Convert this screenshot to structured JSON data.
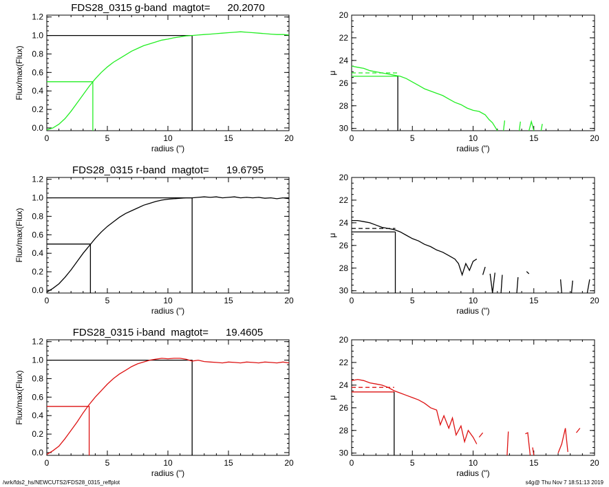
{
  "footer": {
    "path": "/wrk/fds2_hs/NEWCUTS2/FDS28_0315_reffplot",
    "stamp": "s4g@  Thu Nov  7 18:51:13 2019"
  },
  "colors": {
    "g": "#22ee22",
    "r": "#000000",
    "i": "#dd1111",
    "axes": "#000000"
  },
  "chart_data": [
    {
      "type": "line",
      "panel": "growth-curve",
      "band": "g",
      "title": "FDS28_0315 g-band  magtot=      20.2070",
      "xlabel": "radius (\")",
      "ylabel": "Flux/max(Flux)",
      "xlim": [
        0,
        20
      ],
      "ylim": [
        -0.03,
        1.22
      ],
      "xticks": [
        "0",
        "5",
        "10",
        "15",
        "20"
      ],
      "yticks": [
        "0.0",
        "0.2",
        "0.4",
        "0.6",
        "0.8",
        "1.0",
        "1.2"
      ],
      "series": [
        {
          "x": [
            0,
            0.5,
            1,
            1.5,
            2,
            2.5,
            3,
            3.5,
            4,
            4.5,
            5,
            5.5,
            6,
            6.5,
            7,
            7.5,
            8,
            8.5,
            9,
            9.5,
            10,
            10.5,
            11,
            11.5,
            12,
            12.5,
            13,
            13.5,
            14,
            14.5,
            15,
            15.5,
            16,
            16.5,
            17,
            17.5,
            18,
            18.5,
            19,
            19.5,
            20
          ],
          "y": [
            -0.02,
            0,
            0.04,
            0.1,
            0.18,
            0.27,
            0.36,
            0.45,
            0.53,
            0.6,
            0.66,
            0.71,
            0.75,
            0.79,
            0.83,
            0.86,
            0.89,
            0.91,
            0.93,
            0.95,
            0.96,
            0.975,
            0.985,
            0.995,
            1.0,
            1.005,
            1.01,
            1.015,
            1.02,
            1.025,
            1.03,
            1.035,
            1.04,
            1.035,
            1.03,
            1.025,
            1.02,
            1.015,
            1.01,
            1.01,
            1.005
          ]
        }
      ],
      "ref_lines": {
        "half_radius": 3.8,
        "half_flux": 0.5,
        "total_radius": 12.0,
        "total_flux": 1.0
      }
    },
    {
      "type": "line",
      "panel": "surface-brightness",
      "band": "g",
      "xlabel": "radius (\")",
      "ylabel": "μ",
      "xlim": [
        0,
        20
      ],
      "ylim": [
        30.2,
        20
      ],
      "y_inverted": true,
      "xticks": [
        "0",
        "5",
        "10",
        "15",
        "20"
      ],
      "yticks": [
        "20",
        "22",
        "24",
        "26",
        "28",
        "30"
      ],
      "series": [
        {
          "x": [
            0,
            0.5,
            1,
            1.5,
            2,
            2.5,
            3,
            3.5,
            4,
            4.5,
            5,
            5.5,
            6,
            6.5,
            7,
            7.5,
            8,
            8.5,
            9,
            9.5,
            10,
            10.5,
            11,
            11.3,
            11.6,
            12
          ],
          "y": [
            24.5,
            24.6,
            24.7,
            24.9,
            25.0,
            25.1,
            25.2,
            25.3,
            25.4,
            25.6,
            25.9,
            26.2,
            26.5,
            26.7,
            26.9,
            27.1,
            27.4,
            27.7,
            27.9,
            28.2,
            28.4,
            28.5,
            28.8,
            29.2,
            29.5,
            30.2
          ]
        }
      ],
      "fragments": [
        {
          "x": [
            12.5,
            12.6
          ],
          "y": [
            30.2,
            29.3
          ]
        },
        {
          "x": [
            13.8,
            13.9
          ],
          "y": [
            30.2,
            29.4
          ]
        },
        {
          "x": [
            14.6,
            14.8,
            15.0
          ],
          "y": [
            30.2,
            29.4,
            30.2
          ]
        },
        {
          "x": [
            15.6,
            15.7
          ],
          "y": [
            30.2,
            29.6
          ]
        }
      ],
      "ref_lines": {
        "half_radius": 3.8,
        "mu_eff": 25.4,
        "mu_mean": 25.1
      }
    },
    {
      "type": "line",
      "panel": "growth-curve",
      "band": "r",
      "title": "FDS28_0315 r-band  magtot=      19.6795",
      "xlabel": "radius (\")",
      "ylabel": "Flux/max(Flux)",
      "xlim": [
        0,
        20
      ],
      "ylim": [
        -0.03,
        1.22
      ],
      "xticks": [
        "0",
        "5",
        "10",
        "15",
        "20"
      ],
      "yticks": [
        "0.0",
        "0.2",
        "0.4",
        "0.6",
        "0.8",
        "1.0",
        "1.2"
      ],
      "series": [
        {
          "x": [
            0,
            0.5,
            1,
            1.5,
            2,
            2.5,
            3,
            3.5,
            4,
            4.5,
            5,
            5.5,
            6,
            6.5,
            7,
            7.5,
            8,
            8.5,
            9,
            9.5,
            10,
            10.5,
            11,
            11.5,
            12,
            12.5,
            13,
            13.5,
            14,
            14.5,
            15,
            15.5,
            16,
            16.5,
            17,
            17.5,
            18,
            18.5,
            19,
            19.5,
            20
          ],
          "y": [
            -0.02,
            0.02,
            0.07,
            0.14,
            0.22,
            0.31,
            0.4,
            0.48,
            0.56,
            0.63,
            0.69,
            0.74,
            0.79,
            0.83,
            0.86,
            0.89,
            0.92,
            0.94,
            0.96,
            0.975,
            0.985,
            0.99,
            0.995,
            1.0,
            1.0,
            1.005,
            1.01,
            1.005,
            1.01,
            1.0,
            1.005,
            1.01,
            1.0,
            1.005,
            1.0,
            1.005,
            0.995,
            1.0,
            0.99,
            1.0,
            0.99
          ]
        }
      ],
      "ref_lines": {
        "half_radius": 3.6,
        "half_flux": 0.5,
        "total_radius": 12.0,
        "total_flux": 1.0
      }
    },
    {
      "type": "line",
      "panel": "surface-brightness",
      "band": "r",
      "xlabel": "radius (\")",
      "ylabel": "μ",
      "xlim": [
        0,
        20
      ],
      "ylim": [
        30.2,
        20
      ],
      "y_inverted": true,
      "xticks": [
        "0",
        "5",
        "10",
        "15",
        "20"
      ],
      "yticks": [
        "20",
        "22",
        "24",
        "26",
        "28",
        "30"
      ],
      "series": [
        {
          "x": [
            0,
            0.5,
            1,
            1.5,
            2,
            2.5,
            3,
            3.5,
            4,
            4.5,
            5,
            5.5,
            6,
            6.5,
            7,
            7.5,
            8,
            8.5,
            8.8,
            9.1,
            9.4,
            9.7,
            10,
            10.3
          ],
          "y": [
            23.8,
            23.8,
            23.9,
            24.0,
            24.2,
            24.4,
            24.5,
            24.6,
            24.8,
            25.1,
            25.4,
            25.6,
            25.9,
            26.1,
            26.4,
            26.6,
            26.9,
            27.2,
            27.6,
            28.6,
            27.6,
            28.2,
            27.4,
            27.2
          ]
        }
      ],
      "fragments": [
        {
          "x": [
            10.8,
            11.0
          ],
          "y": [
            28.6,
            27.9
          ]
        },
        {
          "x": [
            11.4,
            11.6,
            11.8
          ],
          "y": [
            28.5,
            30.2,
            28.4
          ]
        },
        {
          "x": [
            12.3,
            12.4
          ],
          "y": [
            30.2,
            28.6
          ]
        },
        {
          "x": [
            13.6,
            13.7
          ],
          "y": [
            30.2,
            28.8
          ]
        },
        {
          "x": [
            14.4,
            14.6
          ],
          "y": [
            28.3,
            28.5
          ]
        },
        {
          "x": [
            17.2,
            17.3
          ],
          "y": [
            29.0,
            30.2
          ]
        },
        {
          "x": [
            18.1,
            18.2
          ],
          "y": [
            30.2,
            29.1
          ]
        },
        {
          "x": [
            19.4,
            19.6
          ],
          "y": [
            30.2,
            29.0
          ]
        }
      ],
      "ref_lines": {
        "half_radius": 3.6,
        "mu_eff": 24.8,
        "mu_mean": 24.5
      }
    },
    {
      "type": "line",
      "panel": "growth-curve",
      "band": "i",
      "title": "FDS28_0315 i-band  magtot=      19.4605",
      "xlabel": "radius (\")",
      "ylabel": "Flux/max(Flux)",
      "xlim": [
        0,
        20
      ],
      "ylim": [
        -0.03,
        1.22
      ],
      "xticks": [
        "0",
        "5",
        "10",
        "15",
        "20"
      ],
      "yticks": [
        "0.0",
        "0.2",
        "0.4",
        "0.6",
        "0.8",
        "1.0",
        "1.2"
      ],
      "series": [
        {
          "x": [
            0,
            0.5,
            1,
            1.5,
            2,
            2.5,
            3,
            3.5,
            4,
            4.5,
            5,
            5.5,
            6,
            6.5,
            7,
            7.5,
            8,
            8.5,
            9,
            9.5,
            10,
            10.5,
            11,
            11.5,
            12,
            12.5,
            13,
            13.5,
            14,
            14.5,
            15,
            15.5,
            16,
            16.5,
            17,
            17.5,
            18,
            18.5,
            19,
            19.5,
            20
          ],
          "y": [
            -0.02,
            0.02,
            0.07,
            0.15,
            0.24,
            0.33,
            0.43,
            0.52,
            0.6,
            0.67,
            0.74,
            0.8,
            0.85,
            0.89,
            0.93,
            0.96,
            0.98,
            1.0,
            1.01,
            1.02,
            1.015,
            1.02,
            1.02,
            1.01,
            0.99,
            1.0,
            0.985,
            0.98,
            0.975,
            0.97,
            0.98,
            0.975,
            0.97,
            0.98,
            0.975,
            0.97,
            0.98,
            0.975,
            0.97,
            0.98,
            0.97
          ]
        }
      ],
      "ref_lines": {
        "half_radius": 3.5,
        "half_flux": 0.5,
        "total_radius": 12.0,
        "total_flux": 1.0
      }
    },
    {
      "type": "line",
      "panel": "surface-brightness",
      "band": "i",
      "xlabel": "radius (\")",
      "ylabel": "μ",
      "xlim": [
        0,
        20
      ],
      "ylim": [
        30.2,
        20
      ],
      "y_inverted": true,
      "xticks": [
        "0",
        "5",
        "10",
        "15",
        "20"
      ],
      "yticks": [
        "20",
        "22",
        "24",
        "26",
        "28",
        "30"
      ],
      "series": [
        {
          "x": [
            0,
            0.5,
            1,
            1.5,
            2,
            2.5,
            3,
            3.5,
            4,
            4.5,
            5,
            5.5,
            6,
            6.5,
            7,
            7.3,
            7.6,
            8,
            8.3,
            8.6,
            9,
            9.3,
            9.6,
            10,
            10.3
          ],
          "y": [
            23.6,
            23.5,
            23.6,
            23.8,
            23.9,
            24.0,
            24.2,
            24.5,
            24.7,
            24.9,
            25.1,
            25.3,
            25.6,
            26.0,
            26.2,
            27.5,
            26.7,
            27.8,
            26.9,
            28.4,
            27.6,
            29.0,
            28.0,
            28.6,
            29.2
          ]
        }
      ],
      "fragments": [
        {
          "x": [
            10.5,
            10.8
          ],
          "y": [
            28.6,
            28.2
          ]
        },
        {
          "x": [
            12.8,
            12.9
          ],
          "y": [
            30.2,
            28.1
          ]
        },
        {
          "x": [
            14.3,
            14.5,
            14.7
          ],
          "y": [
            28.3,
            28.2,
            30.2
          ]
        },
        {
          "x": [
            14.9,
            15.0
          ],
          "y": [
            29.5,
            30.2
          ]
        },
        {
          "x": [
            17.0,
            17.3,
            17.6,
            17.8
          ],
          "y": [
            30.0,
            29.2,
            27.8,
            29.9
          ]
        },
        {
          "x": [
            18.5,
            18.8
          ],
          "y": [
            28.2,
            27.8
          ]
        }
      ],
      "ref_lines": {
        "half_radius": 3.5,
        "mu_eff": 24.6,
        "mu_mean": 24.2
      }
    }
  ]
}
